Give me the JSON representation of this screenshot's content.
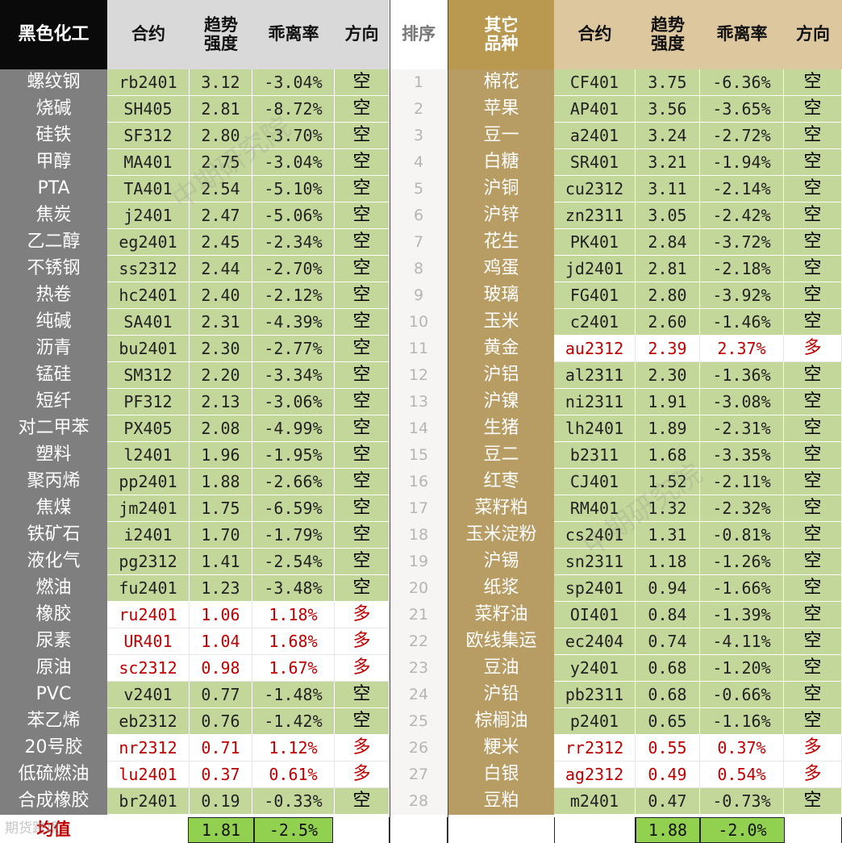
{
  "headers": {
    "left_group": "黑色化工",
    "contract": "合约",
    "trend_line1": "趋势",
    "trend_line2": "强度",
    "deviation": "乖离率",
    "direction": "方向",
    "rank": "排序",
    "right_group_line1": "其它",
    "right_group_line2": "品种"
  },
  "left": [
    {
      "name": "螺纹钢",
      "contract": "rb2401",
      "strength": "3.12",
      "deviation": "-3.04%",
      "direction": "空",
      "long": false
    },
    {
      "name": "烧碱",
      "contract": "SH405",
      "strength": "2.81",
      "deviation": "-8.72%",
      "direction": "空",
      "long": false
    },
    {
      "name": "硅铁",
      "contract": "SF312",
      "strength": "2.80",
      "deviation": "-3.70%",
      "direction": "空",
      "long": false
    },
    {
      "name": "甲醇",
      "contract": "MA401",
      "strength": "2.75",
      "deviation": "-3.04%",
      "direction": "空",
      "long": false
    },
    {
      "name": "PTA",
      "contract": "TA401",
      "strength": "2.54",
      "deviation": "-5.10%",
      "direction": "空",
      "long": false
    },
    {
      "name": "焦炭",
      "contract": "j2401",
      "strength": "2.47",
      "deviation": "-5.06%",
      "direction": "空",
      "long": false
    },
    {
      "name": "乙二醇",
      "contract": "eg2401",
      "strength": "2.45",
      "deviation": "-2.34%",
      "direction": "空",
      "long": false
    },
    {
      "name": "不锈钢",
      "contract": "ss2312",
      "strength": "2.44",
      "deviation": "-2.70%",
      "direction": "空",
      "long": false
    },
    {
      "name": "热卷",
      "contract": "hc2401",
      "strength": "2.40",
      "deviation": "-2.12%",
      "direction": "空",
      "long": false
    },
    {
      "name": "纯碱",
      "contract": "SA401",
      "strength": "2.31",
      "deviation": "-4.39%",
      "direction": "空",
      "long": false
    },
    {
      "name": "沥青",
      "contract": "bu2401",
      "strength": "2.30",
      "deviation": "-2.77%",
      "direction": "空",
      "long": false
    },
    {
      "name": "锰硅",
      "contract": "SM312",
      "strength": "2.20",
      "deviation": "-3.34%",
      "direction": "空",
      "long": false
    },
    {
      "name": "短纤",
      "contract": "PF312",
      "strength": "2.13",
      "deviation": "-3.06%",
      "direction": "空",
      "long": false
    },
    {
      "name": "对二甲苯",
      "contract": "PX405",
      "strength": "2.08",
      "deviation": "-4.99%",
      "direction": "空",
      "long": false
    },
    {
      "name": "塑料",
      "contract": "l2401",
      "strength": "1.96",
      "deviation": "-1.95%",
      "direction": "空",
      "long": false
    },
    {
      "name": "聚丙烯",
      "contract": "pp2401",
      "strength": "1.88",
      "deviation": "-2.66%",
      "direction": "空",
      "long": false
    },
    {
      "name": "焦煤",
      "contract": "jm2401",
      "strength": "1.75",
      "deviation": "-6.59%",
      "direction": "空",
      "long": false
    },
    {
      "name": "铁矿石",
      "contract": "i2401",
      "strength": "1.70",
      "deviation": "-1.79%",
      "direction": "空",
      "long": false
    },
    {
      "name": "液化气",
      "contract": "pg2312",
      "strength": "1.41",
      "deviation": "-2.54%",
      "direction": "空",
      "long": false
    },
    {
      "name": "燃油",
      "contract": "fu2401",
      "strength": "1.23",
      "deviation": "-3.48%",
      "direction": "空",
      "long": false
    },
    {
      "name": "橡胶",
      "contract": "ru2401",
      "strength": "1.06",
      "deviation": "1.18%",
      "direction": "多",
      "long": true
    },
    {
      "name": "尿素",
      "contract": "UR401",
      "strength": "1.04",
      "deviation": "1.68%",
      "direction": "多",
      "long": true
    },
    {
      "name": "原油",
      "contract": "sc2312",
      "strength": "0.98",
      "deviation": "1.67%",
      "direction": "多",
      "long": true
    },
    {
      "name": "PVC",
      "contract": "v2401",
      "strength": "0.77",
      "deviation": "-1.48%",
      "direction": "空",
      "long": false
    },
    {
      "name": "苯乙烯",
      "contract": "eb2312",
      "strength": "0.76",
      "deviation": "-1.42%",
      "direction": "空",
      "long": false
    },
    {
      "name": "20号胶",
      "contract": "nr2312",
      "strength": "0.71",
      "deviation": "1.12%",
      "direction": "多",
      "long": true
    },
    {
      "name": "低硫燃油",
      "contract": "lu2401",
      "strength": "0.37",
      "deviation": "0.61%",
      "direction": "多",
      "long": true
    },
    {
      "name": "合成橡胶",
      "contract": "br2401",
      "strength": "0.19",
      "deviation": "-0.33%",
      "direction": "空",
      "long": false
    }
  ],
  "ranks": [
    "1",
    "2",
    "3",
    "4",
    "5",
    "6",
    "7",
    "8",
    "9",
    "10",
    "11",
    "12",
    "13",
    "14",
    "15",
    "16",
    "17",
    "18",
    "19",
    "20",
    "21",
    "22",
    "23",
    "24",
    "25",
    "26",
    "27",
    "28"
  ],
  "right": [
    {
      "name": "棉花",
      "contract": "CF401",
      "strength": "3.75",
      "deviation": "-6.36%",
      "direction": "空",
      "long": false
    },
    {
      "name": "苹果",
      "contract": "AP401",
      "strength": "3.56",
      "deviation": "-3.65%",
      "direction": "空",
      "long": false
    },
    {
      "name": "豆一",
      "contract": "a2401",
      "strength": "3.24",
      "deviation": "-2.72%",
      "direction": "空",
      "long": false
    },
    {
      "name": "白糖",
      "contract": "SR401",
      "strength": "3.21",
      "deviation": "-1.94%",
      "direction": "空",
      "long": false
    },
    {
      "name": "沪铜",
      "contract": "cu2312",
      "strength": "3.11",
      "deviation": "-2.14%",
      "direction": "空",
      "long": false
    },
    {
      "name": "沪锌",
      "contract": "zn2311",
      "strength": "3.05",
      "deviation": "-2.42%",
      "direction": "空",
      "long": false
    },
    {
      "name": "花生",
      "contract": "PK401",
      "strength": "2.84",
      "deviation": "-3.72%",
      "direction": "空",
      "long": false
    },
    {
      "name": "鸡蛋",
      "contract": "jd2401",
      "strength": "2.81",
      "deviation": "-2.18%",
      "direction": "空",
      "long": false
    },
    {
      "name": "玻璃",
      "contract": "FG401",
      "strength": "2.80",
      "deviation": "-3.92%",
      "direction": "空",
      "long": false
    },
    {
      "name": "玉米",
      "contract": "c2401",
      "strength": "2.60",
      "deviation": "-1.46%",
      "direction": "空",
      "long": false
    },
    {
      "name": "黄金",
      "contract": "au2312",
      "strength": "2.39",
      "deviation": "2.37%",
      "direction": "多",
      "long": true
    },
    {
      "name": "沪铝",
      "contract": "al2311",
      "strength": "2.30",
      "deviation": "-1.36%",
      "direction": "空",
      "long": false
    },
    {
      "name": "沪镍",
      "contract": "ni2311",
      "strength": "1.91",
      "deviation": "-3.08%",
      "direction": "空",
      "long": false
    },
    {
      "name": "生猪",
      "contract": "lh2401",
      "strength": "1.89",
      "deviation": "-2.31%",
      "direction": "空",
      "long": false
    },
    {
      "name": "豆二",
      "contract": "b2311",
      "strength": "1.68",
      "deviation": "-3.35%",
      "direction": "空",
      "long": false
    },
    {
      "name": "红枣",
      "contract": "CJ401",
      "strength": "1.52",
      "deviation": "-2.11%",
      "direction": "空",
      "long": false
    },
    {
      "name": "菜籽粕",
      "contract": "RM401",
      "strength": "1.32",
      "deviation": "-2.32%",
      "direction": "空",
      "long": false
    },
    {
      "name": "玉米淀粉",
      "contract": "cs2401",
      "strength": "1.31",
      "deviation": "-0.81%",
      "direction": "空",
      "long": false
    },
    {
      "name": "沪锡",
      "contract": "sn2311",
      "strength": "1.18",
      "deviation": "-1.26%",
      "direction": "空",
      "long": false
    },
    {
      "name": "纸浆",
      "contract": "sp2401",
      "strength": "0.94",
      "deviation": "-1.66%",
      "direction": "空",
      "long": false
    },
    {
      "name": "菜籽油",
      "contract": "OI401",
      "strength": "0.84",
      "deviation": "-1.39%",
      "direction": "空",
      "long": false
    },
    {
      "name": "欧线集运",
      "contract": "ec2404",
      "strength": "0.74",
      "deviation": "-4.11%",
      "direction": "空",
      "long": false
    },
    {
      "name": "豆油",
      "contract": "y2401",
      "strength": "0.68",
      "deviation": "-1.20%",
      "direction": "空",
      "long": false
    },
    {
      "name": "沪铅",
      "contract": "pb2311",
      "strength": "0.68",
      "deviation": "-0.66%",
      "direction": "空",
      "long": false
    },
    {
      "name": "棕榈油",
      "contract": "p2401",
      "strength": "0.65",
      "deviation": "-1.16%",
      "direction": "空",
      "long": false
    },
    {
      "name": "粳米",
      "contract": "rr2312",
      "strength": "0.55",
      "deviation": "0.37%",
      "direction": "多",
      "long": true
    },
    {
      "name": "白银",
      "contract": "ag2312",
      "strength": "0.49",
      "deviation": "0.54%",
      "direction": "多",
      "long": true
    },
    {
      "name": "豆粕",
      "contract": "m2401",
      "strength": "0.47",
      "deviation": "-0.73%",
      "direction": "空",
      "long": false
    }
  ],
  "average": {
    "label": "均值",
    "left_strength": "1.81",
    "left_deviation": "-2.5%",
    "right_strength": "1.88",
    "right_deviation": "-2.0%"
  },
  "watermarks": [
    "中期研究院",
    "中期研究院"
  ],
  "bottom_watermark": "期货跨境",
  "colors": {
    "green": "#c4d79b",
    "red": "#c00000",
    "avg_green": "#92d050",
    "gold": "#b99850",
    "grey": "#7f7f7f"
  }
}
